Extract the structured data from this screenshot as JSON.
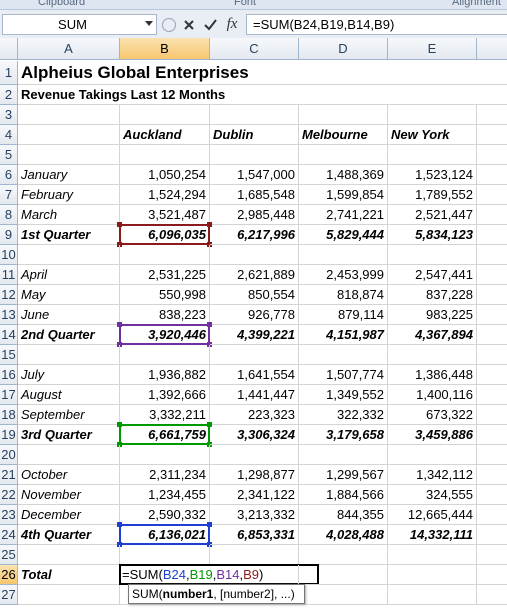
{
  "ribbon": {
    "groups": [
      "Clipboard",
      "Font",
      "Alignment"
    ]
  },
  "formula_bar": {
    "name_box": "SUM",
    "function_icon": "fx",
    "formula": "=SUM(B24,B19,B14,B9)"
  },
  "sheet": {
    "columns": [
      "A",
      "B",
      "C",
      "D",
      "E"
    ],
    "rows": [
      {
        "number": 1,
        "cells": {
          "A": "Alpheius Global Enterprises"
        }
      },
      {
        "number": 2,
        "cells": {
          "A": "Revenue Takings Last 12 Months"
        }
      },
      {
        "number": 3,
        "cells": {}
      },
      {
        "number": 4,
        "cells": {
          "B": "Auckland",
          "C": "Dublin",
          "D": "Melbourne",
          "E": "New York"
        }
      },
      {
        "number": 5,
        "cells": {}
      },
      {
        "number": 6,
        "cells": {
          "A": "January",
          "B": "1,050,254",
          "C": "1,547,000",
          "D": "1,488,369",
          "E": "1,523,124"
        }
      },
      {
        "number": 7,
        "cells": {
          "A": "February",
          "B": "1,524,294",
          "C": "1,685,548",
          "D": "1,599,854",
          "E": "1,789,552"
        }
      },
      {
        "number": 8,
        "cells": {
          "A": "March",
          "B": "3,521,487",
          "C": "2,985,448",
          "D": "2,741,221",
          "E": "2,521,447"
        }
      },
      {
        "number": 9,
        "cells": {
          "A": "1st Quarter",
          "B": "6,096,035",
          "C": "6,217,996",
          "D": "5,829,444",
          "E": "5,834,123"
        }
      },
      {
        "number": 10,
        "cells": {}
      },
      {
        "number": 11,
        "cells": {
          "A": "April",
          "B": "2,531,225",
          "C": "2,621,889",
          "D": "2,453,999",
          "E": "2,547,441"
        }
      },
      {
        "number": 12,
        "cells": {
          "A": "May",
          "B": "550,998",
          "C": "850,554",
          "D": "818,874",
          "E": "837,228"
        }
      },
      {
        "number": 13,
        "cells": {
          "A": "June",
          "B": "838,223",
          "C": "926,778",
          "D": "879,114",
          "E": "983,225"
        }
      },
      {
        "number": 14,
        "cells": {
          "A": "2nd Quarter",
          "B": "3,920,446",
          "C": "4,399,221",
          "D": "4,151,987",
          "E": "4,367,894"
        }
      },
      {
        "number": 15,
        "cells": {}
      },
      {
        "number": 16,
        "cells": {
          "A": "July",
          "B": "1,936,882",
          "C": "1,641,554",
          "D": "1,507,774",
          "E": "1,386,448"
        }
      },
      {
        "number": 17,
        "cells": {
          "A": "August",
          "B": "1,392,666",
          "C": "1,441,447",
          "D": "1,349,552",
          "E": "1,400,116"
        }
      },
      {
        "number": 18,
        "cells": {
          "A": "September",
          "B": "3,332,211",
          "C": "223,323",
          "D": "322,332",
          "E": "673,322"
        }
      },
      {
        "number": 19,
        "cells": {
          "A": "3rd Quarter",
          "B": "6,661,759",
          "C": "3,306,324",
          "D": "3,179,658",
          "E": "3,459,886"
        }
      },
      {
        "number": 20,
        "cells": {}
      },
      {
        "number": 21,
        "cells": {
          "A": "October",
          "B": "2,311,234",
          "C": "1,298,877",
          "D": "1,299,567",
          "E": "1,342,112"
        }
      },
      {
        "number": 22,
        "cells": {
          "A": "November",
          "B": "1,234,455",
          "C": "2,341,122",
          "D": "1,884,566",
          "E": "324,555"
        }
      },
      {
        "number": 23,
        "cells": {
          "A": "December",
          "B": "2,590,332",
          "C": "3,213,332",
          "D": "844,355",
          "E": "12,665,444"
        }
      },
      {
        "number": 24,
        "cells": {
          "A": "4th Quarter",
          "B": "6,136,021",
          "C": "6,853,331",
          "D": "4,028,488",
          "E": "14,332,111"
        }
      },
      {
        "number": 25,
        "cells": {}
      },
      {
        "number": 26,
        "cells": {
          "A": "Total"
        }
      },
      {
        "number": 27,
        "cells": {}
      }
    ],
    "editing_cell": {
      "parts": [
        "=SUM(",
        "B24",
        ",",
        "B19",
        ",",
        "B14",
        ",",
        "B9",
        ")"
      ]
    },
    "tooltip": {
      "parts": [
        "SUM(",
        "number1",
        ", [number2], ...)"
      ]
    }
  }
}
